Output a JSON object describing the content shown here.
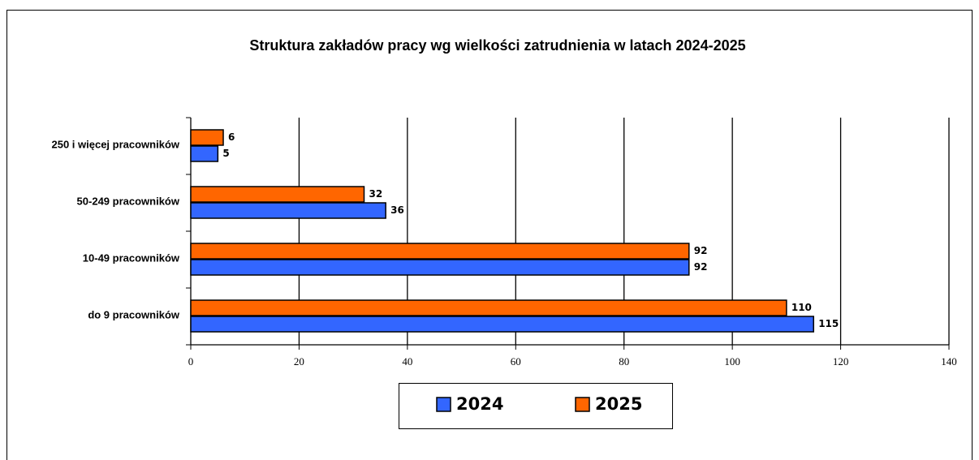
{
  "chart_data": {
    "type": "bar",
    "orientation": "horizontal",
    "title": "Struktura zakładów pracy wg wielkości zatrudnienia w latach 2024-2025",
    "categories": [
      "250 i więcej pracowników",
      "50-249 pracowników",
      "10-49 pracowników",
      "do 9 pracowników"
    ],
    "series": [
      {
        "name": "2024",
        "color": "#3366ff",
        "values": [
          5,
          36,
          92,
          115
        ]
      },
      {
        "name": "2025",
        "color": "#ff6600",
        "values": [
          6,
          32,
          92,
          110
        ]
      }
    ],
    "xlim": [
      0,
      140
    ],
    "xticks": [
      0,
      20,
      40,
      60,
      80,
      100,
      120,
      140
    ],
    "grid": true,
    "legend": "bottom"
  }
}
